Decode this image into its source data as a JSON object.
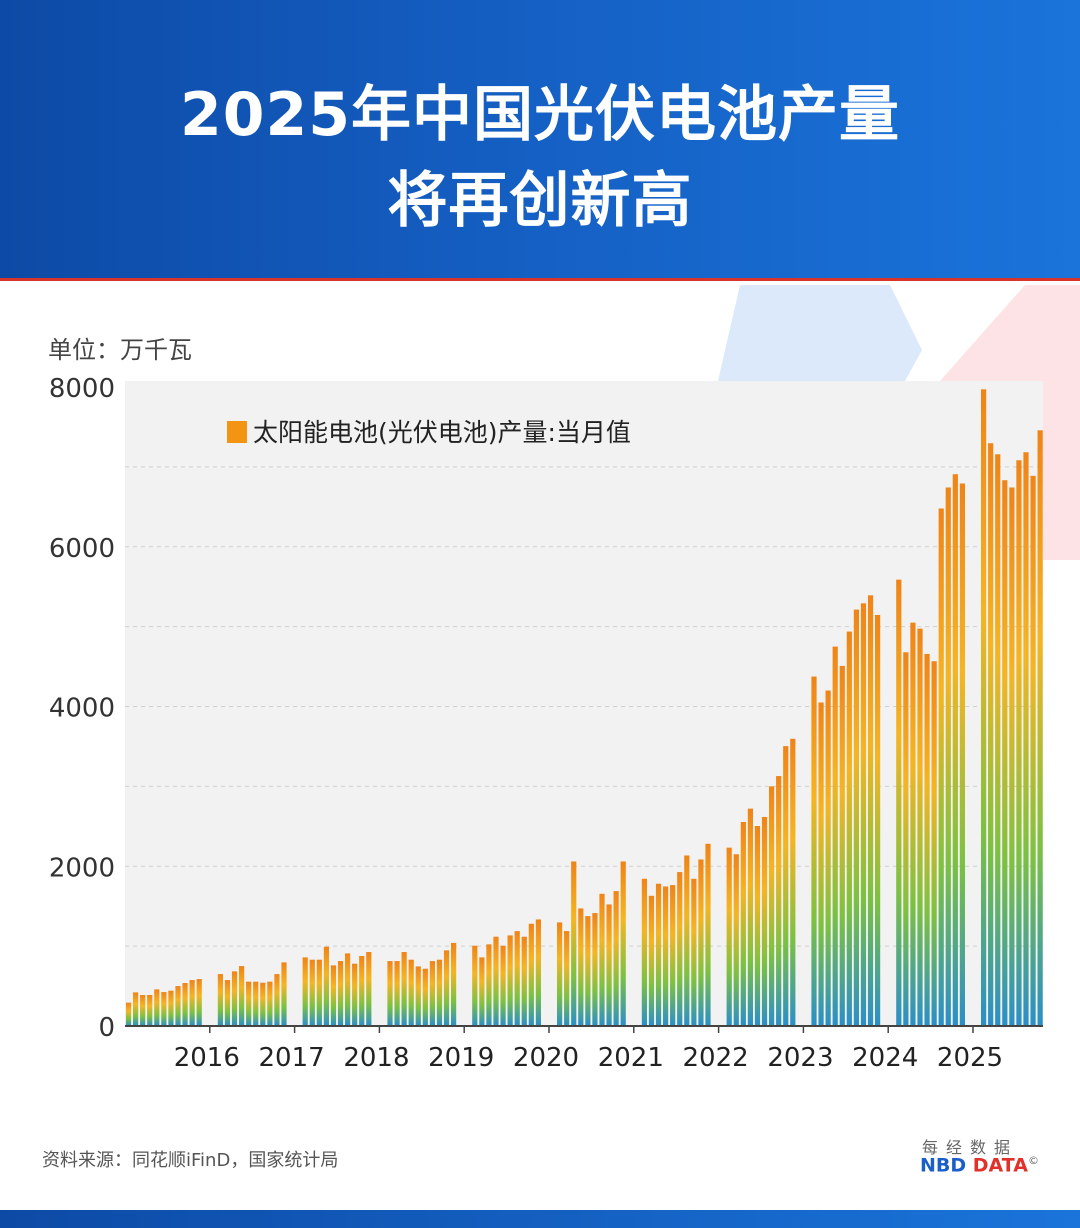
{
  "header": {
    "title_line1": "2025年中国光伏电池产量",
    "title_line2": "将再创新高"
  },
  "unit_label": "单位：万千瓦",
  "source": "资料来源：同花顺iFinD，国家统计局",
  "logo": {
    "cn": "每经数据",
    "en_a": "NBD",
    "en_b": " DATA",
    "mark": "©"
  },
  "colors": {
    "header": "#1560c4",
    "accent_red": "#d9342b",
    "bar_top": "#f08a1c",
    "bar_mid": "#f5b820",
    "bar_green": "#7cc142",
    "bar_bottom": "#2a8fc9",
    "plot_bg": "#f2f2f2"
  },
  "chart_data": {
    "type": "bar",
    "title": "",
    "xlabel": "",
    "ylabel": "",
    "ylim": [
      0,
      8000
    ],
    "yticks": [
      "0",
      "2000",
      "4000",
      "6000",
      "8000"
    ],
    "xticks": [
      "2016",
      "2017",
      "2018",
      "2019",
      "2020",
      "2021",
      "2022",
      "2023",
      "2024",
      "2025"
    ],
    "grid": true,
    "legend_position": "top-left",
    "series": [
      {
        "name": "太阳能电池(光伏电池)产量:当月值",
        "points": [
          [
            "2015-01",
            292
          ],
          [
            "2015-02",
            421
          ],
          [
            "2015-03",
            388
          ],
          [
            "2015-04",
            388
          ],
          [
            "2015-05",
            458
          ],
          [
            "2015-06",
            425
          ],
          [
            "2015-07",
            442
          ],
          [
            "2015-08",
            500
          ],
          [
            "2015-09",
            538
          ],
          [
            "2015-10",
            575
          ],
          [
            "2015-11",
            588
          ],
          [
            "2016-02",
            650
          ],
          [
            "2016-03",
            575
          ],
          [
            "2016-04",
            684
          ],
          [
            "2016-05",
            750
          ],
          [
            "2016-06",
            555
          ],
          [
            "2016-07",
            555
          ],
          [
            "2016-08",
            542
          ],
          [
            "2016-09",
            555
          ],
          [
            "2016-10",
            650
          ],
          [
            "2016-11",
            796
          ],
          [
            "2017-02",
            859
          ],
          [
            "2017-03",
            830
          ],
          [
            "2017-04",
            830
          ],
          [
            "2017-05",
            992
          ],
          [
            "2017-06",
            759
          ],
          [
            "2017-07",
            813
          ],
          [
            "2017-08",
            909
          ],
          [
            "2017-09",
            780
          ],
          [
            "2017-10",
            876
          ],
          [
            "2017-11",
            926
          ],
          [
            "2018-02",
            813
          ],
          [
            "2018-03",
            813
          ],
          [
            "2018-04",
            926
          ],
          [
            "2018-05",
            830
          ],
          [
            "2018-06",
            746
          ],
          [
            "2018-07",
            717
          ],
          [
            "2018-08",
            813
          ],
          [
            "2018-09",
            830
          ],
          [
            "2018-10",
            947
          ],
          [
            "2018-11",
            1040
          ],
          [
            "2019-02",
            1005
          ],
          [
            "2019-03",
            859
          ],
          [
            "2019-04",
            1022
          ],
          [
            "2019-05",
            1118
          ],
          [
            "2019-06",
            1005
          ],
          [
            "2019-07",
            1134
          ],
          [
            "2019-08",
            1188
          ],
          [
            "2019-09",
            1118
          ],
          [
            "2019-10",
            1280
          ],
          [
            "2019-11",
            1334
          ],
          [
            "2020-02",
            1297
          ],
          [
            "2020-03",
            1188
          ],
          [
            "2020-04",
            2060
          ],
          [
            "2020-05",
            1472
          ],
          [
            "2020-06",
            1376
          ],
          [
            "2020-07",
            1414
          ],
          [
            "2020-08",
            1655
          ],
          [
            "2020-09",
            1522
          ],
          [
            "2020-10",
            1689
          ],
          [
            "2020-11",
            2060
          ],
          [
            "2021-02",
            1843
          ],
          [
            "2021-03",
            1630
          ],
          [
            "2021-04",
            1781
          ],
          [
            "2021-05",
            1747
          ],
          [
            "2021-06",
            1764
          ],
          [
            "2021-07",
            1927
          ],
          [
            "2021-08",
            2135
          ],
          [
            "2021-09",
            1843
          ],
          [
            "2021-10",
            2085
          ],
          [
            "2021-11",
            2281
          ],
          [
            "2022-02",
            2233
          ],
          [
            "2022-03",
            2150
          ],
          [
            "2022-04",
            2554
          ],
          [
            "2022-05",
            2721
          ],
          [
            "2022-06",
            2504
          ],
          [
            "2022-07",
            2617
          ],
          [
            "2022-08",
            3000
          ],
          [
            "2022-09",
            3129
          ],
          [
            "2022-10",
            3504
          ],
          [
            "2022-11",
            3596
          ],
          [
            "2023-02",
            4375
          ],
          [
            "2023-03",
            4050
          ],
          [
            "2023-04",
            4200
          ],
          [
            "2023-05",
            4750
          ],
          [
            "2023-06",
            4508
          ],
          [
            "2023-07",
            4938
          ],
          [
            "2023-08",
            5213
          ],
          [
            "2023-09",
            5292
          ],
          [
            "2023-10",
            5392
          ],
          [
            "2023-11",
            5146
          ],
          [
            "2024-02",
            5588
          ],
          [
            "2024-03",
            4679
          ],
          [
            "2024-04",
            5050
          ],
          [
            "2024-05",
            4975
          ],
          [
            "2024-06",
            4658
          ],
          [
            "2024-07",
            4567
          ],
          [
            "2024-08",
            6479
          ],
          [
            "2024-09",
            6742
          ],
          [
            "2024-10",
            6908
          ],
          [
            "2024-11",
            6792
          ],
          [
            "2025-02",
            7971
          ],
          [
            "2025-03",
            7296
          ],
          [
            "2025-04",
            7158
          ],
          [
            "2025-05",
            6833
          ],
          [
            "2025-06",
            6742
          ],
          [
            "2025-07",
            7083
          ],
          [
            "2025-08",
            7183
          ],
          [
            "2025-09",
            6888
          ],
          [
            "2025-10",
            7458
          ]
        ]
      }
    ]
  }
}
